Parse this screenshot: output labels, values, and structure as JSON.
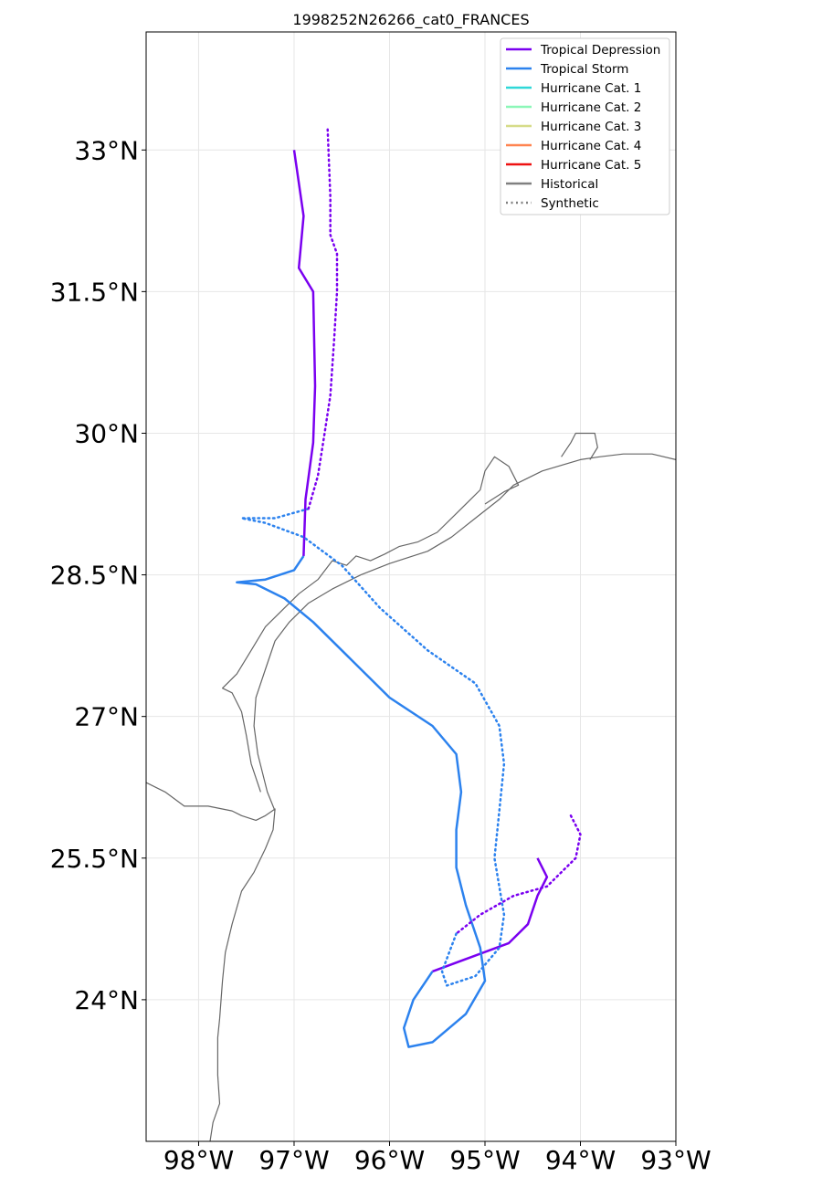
{
  "title": "1998252N26266_cat0_FRANCES",
  "map": {
    "lon_range": [
      -98.55,
      -93.0
    ],
    "lat_range": [
      22.5,
      34.25
    ],
    "grid": true,
    "x_ticks": [
      {
        "lon": -98,
        "label": "98°W"
      },
      {
        "lon": -97,
        "label": "97°W"
      },
      {
        "lon": -96,
        "label": "96°W"
      },
      {
        "lon": -95,
        "label": "95°W"
      },
      {
        "lon": -94,
        "label": "94°W"
      },
      {
        "lon": -93,
        "label": "93°W"
      }
    ],
    "y_ticks": [
      {
        "lat": 33.0,
        "label": "33°N"
      },
      {
        "lat": 31.5,
        "label": "31.5°N"
      },
      {
        "lat": 30.0,
        "label": "30°N"
      },
      {
        "lat": 28.5,
        "label": "28.5°N"
      },
      {
        "lat": 27.0,
        "label": "27°N"
      },
      {
        "lat": 25.5,
        "label": "25.5°N"
      },
      {
        "lat": 24.0,
        "label": "24°N"
      }
    ]
  },
  "legend": {
    "placement": "top-right",
    "entries": [
      {
        "label": "Tropical Depression",
        "color": "#7a00f0",
        "style": "solid"
      },
      {
        "label": "Tropical Storm",
        "color": "#2c82ee",
        "style": "solid"
      },
      {
        "label": "Hurricane Cat. 1",
        "color": "#2fd8d8",
        "style": "solid"
      },
      {
        "label": "Hurricane Cat. 2",
        "color": "#8cf7b8",
        "style": "solid"
      },
      {
        "label": "Hurricane Cat. 3",
        "color": "#d6dc88",
        "style": "solid"
      },
      {
        "label": "Hurricane Cat. 4",
        "color": "#ff8450",
        "style": "solid"
      },
      {
        "label": "Hurricane Cat. 5",
        "color": "#ee1111",
        "style": "solid"
      },
      {
        "label": "Historical",
        "color": "#808080",
        "style": "solid"
      },
      {
        "label": "Synthetic",
        "color": "#808080",
        "style": "dotted"
      }
    ]
  },
  "coastline": {
    "color": "#666666",
    "segments": [
      [
        [
          -98.55,
          26.3
        ],
        [
          -98.35,
          26.2
        ],
        [
          -98.15,
          26.05
        ],
        [
          -97.9,
          26.05
        ],
        [
          -97.65,
          26.0
        ],
        [
          -97.55,
          25.95
        ],
        [
          -97.4,
          25.9
        ],
        [
          -97.3,
          25.95
        ],
        [
          -97.2,
          26.02
        ],
        [
          -97.22,
          25.8
        ],
        [
          -97.3,
          25.6
        ],
        [
          -97.42,
          25.35
        ],
        [
          -97.55,
          25.15
        ],
        [
          -97.65,
          24.8
        ],
        [
          -97.72,
          24.5
        ],
        [
          -97.75,
          24.2
        ],
        [
          -97.78,
          23.8
        ],
        [
          -97.8,
          23.6
        ],
        [
          -97.8,
          23.2
        ],
        [
          -97.78,
          22.9
        ],
        [
          -97.85,
          22.7
        ],
        [
          -97.88,
          22.5
        ]
      ],
      [
        [
          -97.2,
          26.0
        ],
        [
          -97.28,
          26.2
        ],
        [
          -97.38,
          26.6
        ],
        [
          -97.42,
          26.9
        ],
        [
          -97.4,
          27.2
        ],
        [
          -97.3,
          27.5
        ],
        [
          -97.2,
          27.8
        ],
        [
          -97.05,
          28.0
        ],
        [
          -96.85,
          28.2
        ],
        [
          -96.6,
          28.35
        ],
        [
          -96.3,
          28.5
        ],
        [
          -96.0,
          28.62
        ],
        [
          -95.6,
          28.75
        ],
        [
          -95.35,
          28.9
        ],
        [
          -95.1,
          29.1
        ],
        [
          -94.85,
          29.3
        ],
        [
          -94.7,
          29.45
        ],
        [
          -94.4,
          29.6
        ],
        [
          -94.0,
          29.72
        ],
        [
          -93.8,
          29.75
        ],
        [
          -93.55,
          29.78
        ],
        [
          -93.25,
          29.78
        ],
        [
          -93.0,
          29.72
        ]
      ],
      [
        [
          -97.35,
          26.2
        ],
        [
          -97.45,
          26.5
        ],
        [
          -97.5,
          26.8
        ],
        [
          -97.55,
          27.05
        ],
        [
          -97.65,
          27.25
        ],
        [
          -97.75,
          27.3
        ],
        [
          -97.6,
          27.45
        ],
        [
          -97.45,
          27.7
        ],
        [
          -97.3,
          27.95
        ],
        [
          -97.15,
          28.1
        ],
        [
          -96.95,
          28.3
        ],
        [
          -96.75,
          28.45
        ],
        [
          -96.6,
          28.65
        ],
        [
          -96.45,
          28.6
        ],
        [
          -96.35,
          28.7
        ],
        [
          -96.2,
          28.65
        ],
        [
          -96.05,
          28.72
        ],
        [
          -95.9,
          28.8
        ],
        [
          -95.7,
          28.85
        ],
        [
          -95.5,
          28.95
        ],
        [
          -95.3,
          29.15
        ],
        [
          -95.05,
          29.4
        ],
        [
          -95.0,
          29.6
        ],
        [
          -94.9,
          29.75
        ],
        [
          -94.75,
          29.65
        ],
        [
          -94.65,
          29.45
        ],
        [
          -94.8,
          29.38
        ],
        [
          -95.0,
          29.25
        ]
      ],
      [
        [
          -94.2,
          29.75
        ],
        [
          -94.1,
          29.9
        ],
        [
          -94.05,
          30.0
        ],
        [
          -93.85,
          30.0
        ],
        [
          -93.82,
          29.85
        ],
        [
          -93.9,
          29.72
        ]
      ]
    ]
  },
  "chart_data": {
    "type": "map-track",
    "title": "1998252N26266_cat0_FRANCES",
    "x_axis": "longitude",
    "y_axis": "latitude",
    "tracks": [
      {
        "kind": "Historical",
        "segments": [
          {
            "category": "Tropical Depression",
            "points": [
              [
                -94.45,
                25.5
              ],
              [
                -94.35,
                25.3
              ],
              [
                -94.45,
                25.1
              ],
              [
                -94.55,
                24.8
              ],
              [
                -94.75,
                24.6
              ],
              [
                -95.15,
                24.45
              ],
              [
                -95.55,
                24.3
              ]
            ]
          },
          {
            "category": "Tropical Storm",
            "points": [
              [
                -95.55,
                24.3
              ],
              [
                -95.75,
                24.0
              ],
              [
                -95.85,
                23.7
              ],
              [
                -95.8,
                23.5
              ],
              [
                -95.55,
                23.55
              ],
              [
                -95.2,
                23.85
              ],
              [
                -95.0,
                24.2
              ],
              [
                -95.05,
                24.55
              ],
              [
                -95.2,
                25.0
              ],
              [
                -95.3,
                25.4
              ],
              [
                -95.3,
                25.8
              ],
              [
                -95.25,
                26.2
              ],
              [
                -95.3,
                26.6
              ],
              [
                -95.55,
                26.9
              ],
              [
                -96.0,
                27.2
              ],
              [
                -96.4,
                27.6
              ],
              [
                -96.8,
                28.0
              ],
              [
                -97.1,
                28.25
              ],
              [
                -97.4,
                28.4
              ],
              [
                -97.6,
                28.42
              ],
              [
                -97.3,
                28.45
              ],
              [
                -97.0,
                28.55
              ],
              [
                -96.9,
                28.7
              ]
            ]
          },
          {
            "category": "Tropical Depression",
            "points": [
              [
                -96.9,
                28.7
              ],
              [
                -96.88,
                29.3
              ],
              [
                -96.8,
                29.9
              ],
              [
                -96.78,
                30.5
              ],
              [
                -96.8,
                31.5
              ],
              [
                -96.95,
                31.75
              ],
              [
                -96.9,
                32.3
              ],
              [
                -97.0,
                33.0
              ]
            ]
          }
        ]
      },
      {
        "kind": "Synthetic",
        "segments": [
          {
            "category": "Tropical Depression",
            "points": [
              [
                -94.1,
                25.95
              ],
              [
                -94.0,
                25.75
              ],
              [
                -94.05,
                25.5
              ],
              [
                -94.35,
                25.2
              ],
              [
                -94.7,
                25.1
              ],
              [
                -95.05,
                24.9
              ],
              [
                -95.3,
                24.7
              ]
            ]
          },
          {
            "category": "Tropical Storm",
            "points": [
              [
                -95.3,
                24.7
              ],
              [
                -95.45,
                24.3
              ],
              [
                -95.4,
                24.15
              ],
              [
                -95.1,
                24.25
              ],
              [
                -94.85,
                24.55
              ],
              [
                -94.8,
                24.9
              ],
              [
                -94.9,
                25.5
              ],
              [
                -94.85,
                26.0
              ],
              [
                -94.8,
                26.5
              ],
              [
                -94.85,
                26.9
              ],
              [
                -95.1,
                27.35
              ],
              [
                -95.6,
                27.7
              ],
              [
                -96.1,
                28.15
              ],
              [
                -96.5,
                28.6
              ],
              [
                -96.9,
                28.9
              ],
              [
                -97.3,
                29.05
              ],
              [
                -97.55,
                29.1
              ],
              [
                -97.2,
                29.1
              ],
              [
                -96.85,
                29.2
              ]
            ]
          },
          {
            "category": "Tropical Depression",
            "points": [
              [
                -96.85,
                29.2
              ],
              [
                -96.75,
                29.55
              ],
              [
                -96.68,
                30.0
              ],
              [
                -96.62,
                30.4
              ],
              [
                -96.58,
                31.0
              ],
              [
                -96.55,
                31.5
              ],
              [
                -96.55,
                31.9
              ],
              [
                -96.62,
                32.1
              ],
              [
                -96.62,
                32.5
              ],
              [
                -96.65,
                33.25
              ]
            ]
          }
        ]
      }
    ]
  }
}
